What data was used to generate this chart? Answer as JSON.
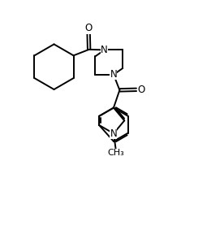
{
  "background_color": "#ffffff",
  "line_color": "#000000",
  "line_width": 1.4,
  "font_size": 8.5,
  "figsize": [
    2.76,
    3.1
  ],
  "dpi": 100,
  "xlim": [
    0,
    10
  ],
  "ylim": [
    0,
    11.5
  ]
}
